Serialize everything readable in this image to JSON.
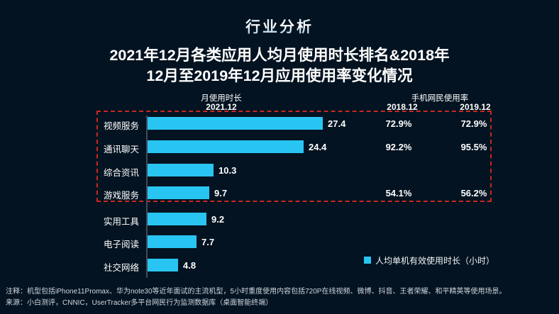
{
  "header": {
    "section_title": "行业分析"
  },
  "title": {
    "line1": "2021年12月各类应用人均月使用时长排名&2018年",
    "line2": "12月至2019年12月应用使用率变化情况"
  },
  "chart_data": {
    "type": "bar",
    "orientation": "horizontal",
    "title": "2021年12月各类应用人均月使用时长排名&2018年12月至2019年12月应用使用率变化情况",
    "categories": [
      "视频服务",
      "通讯聊天",
      "综合资讯",
      "游戏服务",
      "实用工具",
      "电子阅读",
      "社交网络"
    ],
    "values": [
      27.4,
      24.4,
      10.3,
      9.7,
      9.2,
      7.7,
      4.8
    ],
    "value_unit": "小时",
    "xlim": [
      0,
      30
    ],
    "grid": false,
    "bar_color": "#29C5F2",
    "columns": {
      "duration_header": "月使用时长",
      "duration_period": "2021.12",
      "usage_header": "手机网民使用率",
      "usage_period_2018": "2018.12",
      "usage_period_2019": "2019.12"
    },
    "rates_2018": [
      "72.9%",
      "92.2%",
      "",
      "54.1%",
      "",
      "",
      ""
    ],
    "rates_2019": [
      "72.9%",
      "95.5%",
      "",
      "56.2%",
      "",
      "",
      ""
    ],
    "highlight_box": {
      "rows_enclosed": [
        "视频服务",
        "通讯聊天",
        "综合资讯",
        "游戏服务"
      ],
      "color": "#C6291E",
      "style": "dashed"
    },
    "legend": {
      "label": "人均单机有效使用时长（小时）",
      "position": "bottom-right",
      "swatch_color": "#29C5F2"
    }
  },
  "footnotes": {
    "note": "注释：机型包括iPhone11Promax、华为note30等近年面试的主流机型，5小时重度使用内容包括720P在线视频、微博、抖音、王者荣耀、和平精英等使用场景。",
    "source": "来源：小白测评，CNNIC，UserTracker多平台网民行为监测数据库（桌面智能终端）"
  }
}
